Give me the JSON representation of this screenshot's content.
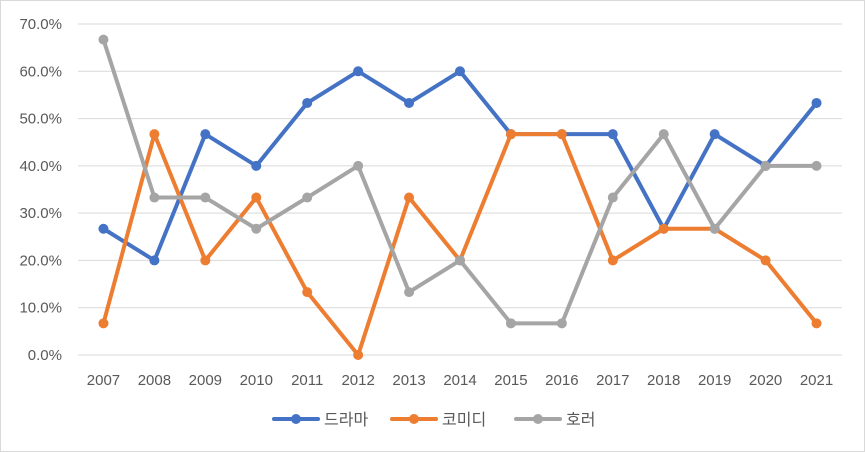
{
  "chart_data": {
    "type": "line",
    "title": "",
    "xlabel": "",
    "ylabel": "",
    "categories": [
      "2007",
      "2008",
      "2009",
      "2010",
      "2011",
      "2012",
      "2013",
      "2014",
      "2015",
      "2016",
      "2017",
      "2018",
      "2019",
      "2020",
      "2021"
    ],
    "ylim": [
      0,
      70
    ],
    "yticks": [
      "0.0%",
      "10.0%",
      "20.0%",
      "30.0%",
      "40.0%",
      "50.0%",
      "60.0%",
      "70.0%"
    ],
    "grid": true,
    "legend_position": "bottom",
    "series": [
      {
        "name": "드라마",
        "color": "#4472C4",
        "values": [
          26.7,
          20.0,
          46.7,
          40.0,
          53.3,
          60.0,
          53.3,
          60.0,
          46.7,
          46.7,
          46.7,
          26.7,
          46.7,
          40.0,
          53.3
        ]
      },
      {
        "name": "코미디",
        "color": "#ED7D31",
        "values": [
          6.7,
          46.7,
          20.0,
          33.3,
          13.3,
          0.0,
          33.3,
          20.0,
          46.7,
          46.7,
          20.0,
          26.7,
          26.7,
          20.0,
          6.7
        ]
      },
      {
        "name": "호러",
        "color": "#A5A5A5",
        "values": [
          66.7,
          33.3,
          33.3,
          26.7,
          33.3,
          40.0,
          13.3,
          20.0,
          6.7,
          6.7,
          33.3,
          46.7,
          26.7,
          40.0,
          40.0
        ]
      }
    ]
  }
}
